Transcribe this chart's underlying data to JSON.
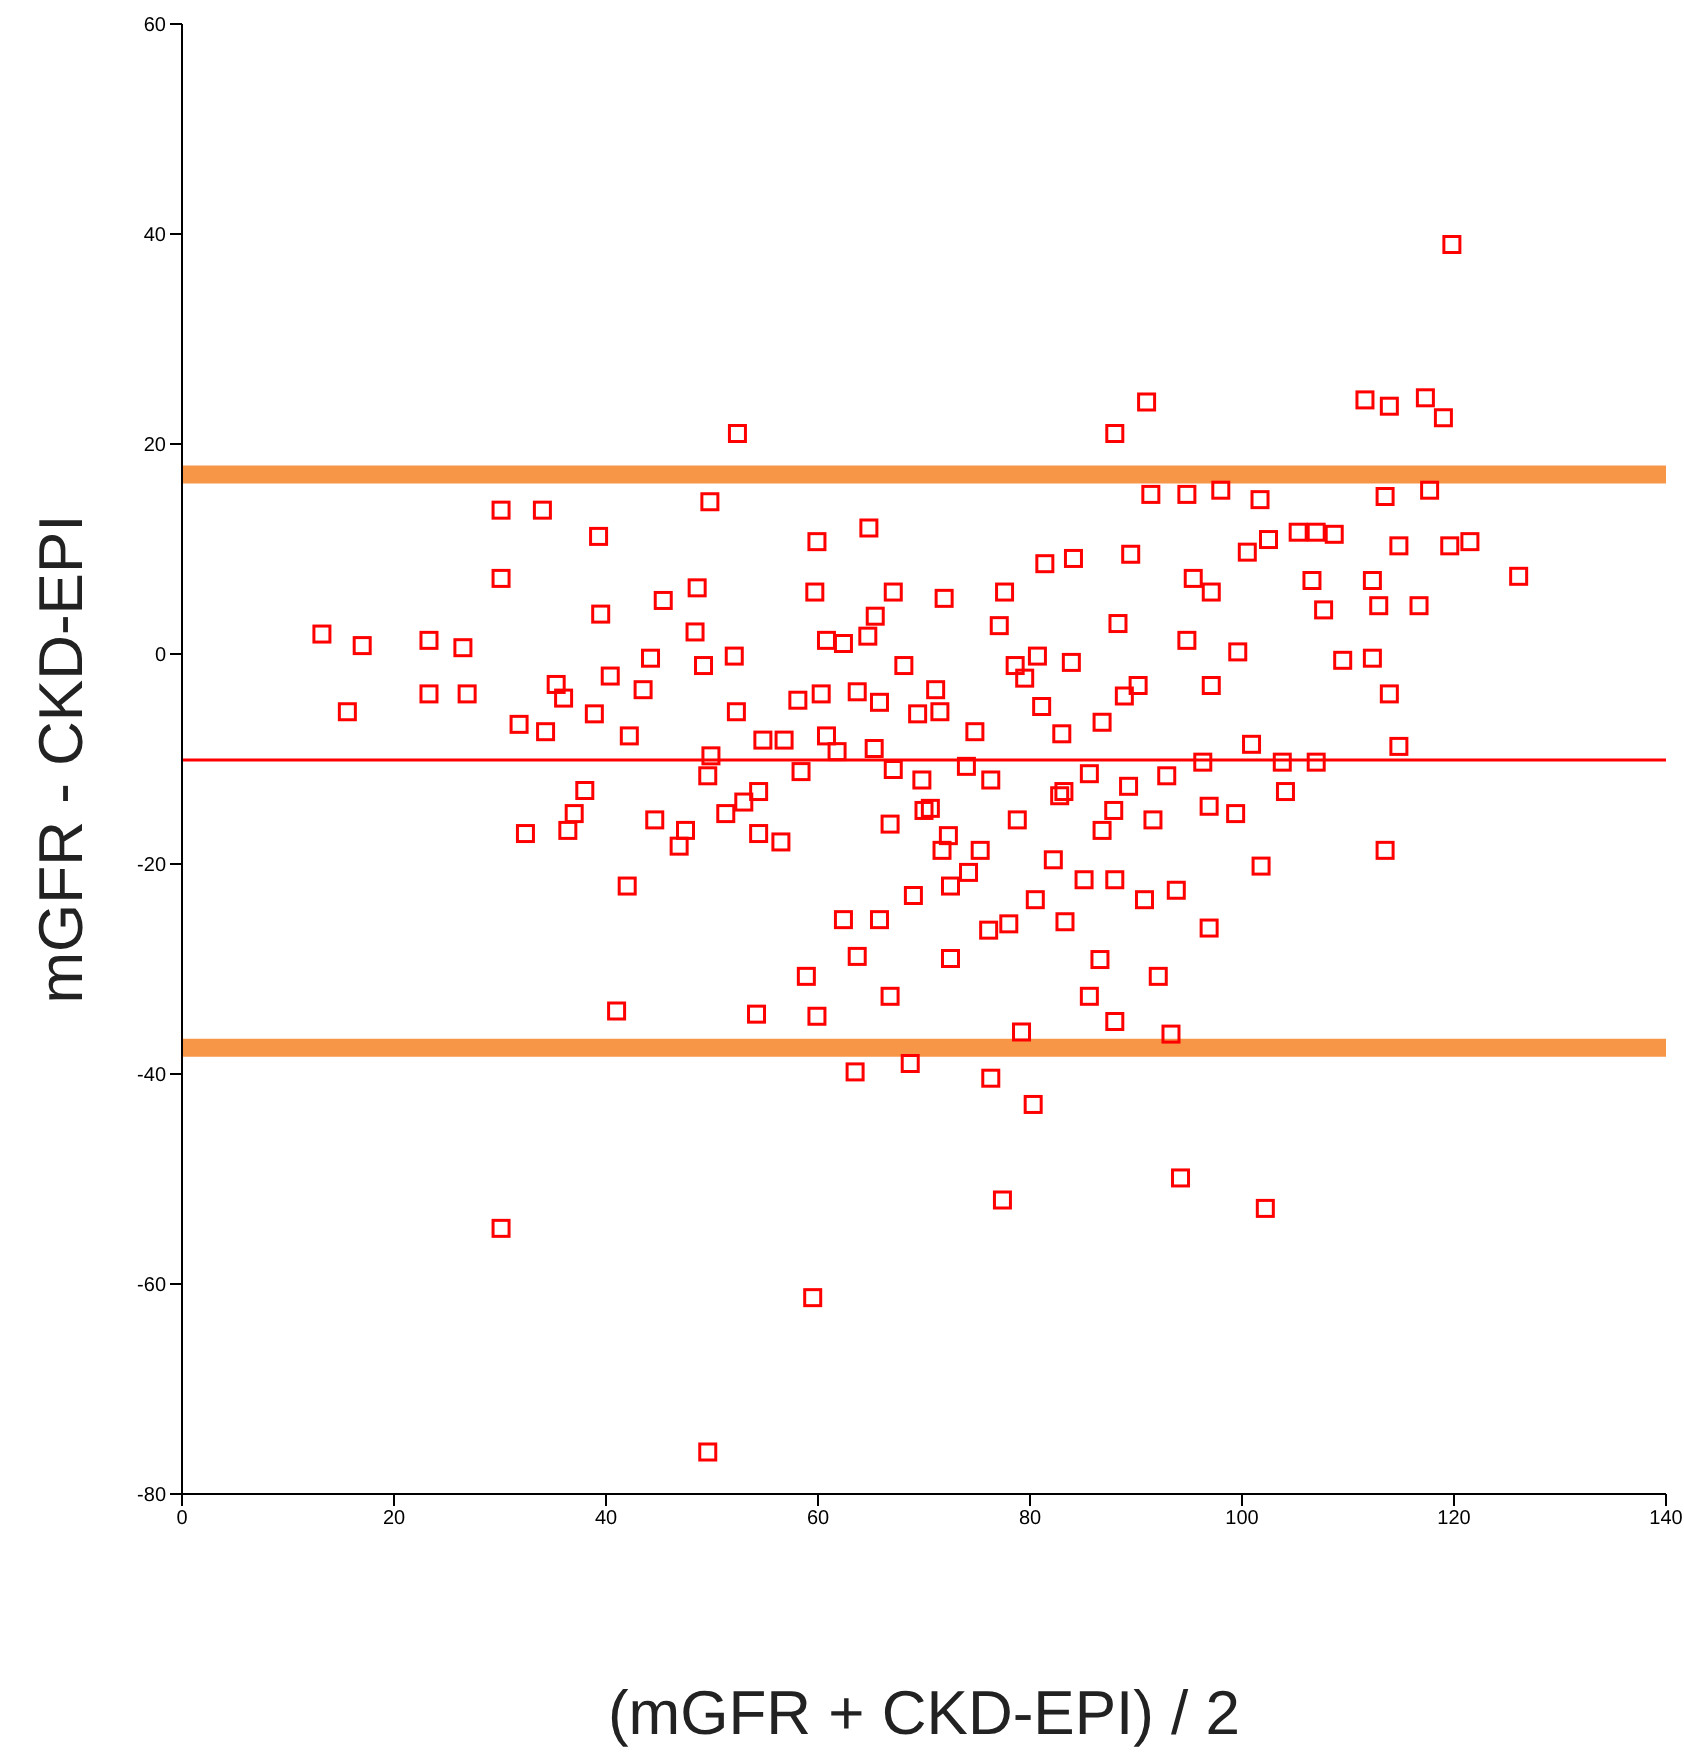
{
  "chart_data": {
    "type": "scatter",
    "xlabel": "(mGFR + CKD-EPI) / 2",
    "ylabel": "mGFR - CKD-EPI",
    "xlim": [
      0,
      140
    ],
    "xticks": [
      0,
      20,
      40,
      60,
      80,
      100,
      120,
      140
    ],
    "ylim": [
      -80,
      60
    ],
    "yticks": [
      -80,
      -60,
      -40,
      -20,
      0,
      20,
      40,
      60
    ],
    "marker": "square",
    "ref_lines": [
      {
        "axis": "y",
        "value": -10.1,
        "color": "#ff0000"
      },
      {
        "axis": "y",
        "value": 17.1,
        "color": "#f79646"
      },
      {
        "axis": "y",
        "value": -37.5,
        "color": "#f79646"
      }
    ],
    "series": [
      {
        "color": "#ff0000",
        "x": [
          119.8,
          119,
          117.3,
          111.6,
          113.9,
          91,
          88,
          52.4,
          126.1,
          121.5,
          30.1,
          59.5,
          49.6,
          77.4,
          94.2,
          102.2,
          80.3,
          76.3,
          63.5,
          68.7,
          93.3,
          79.2,
          41,
          54.2,
          59.9,
          88,
          85.6,
          66.8,
          92.1,
          58.9,
          72.5,
          86.6,
          13.2,
          17,
          15.6,
          23.3,
          23.3,
          26.5,
          26.9,
          30.1,
          30.1,
          34,
          31.8,
          32.4,
          34.3,
          36.4,
          39.5,
          39.3,
          42.2,
          42,
          45.4,
          44.2,
          48.6,
          48.4,
          49.2,
          49.8,
          52.1,
          52.3,
          44.6,
          46.9,
          49.6,
          51.3,
          54.4,
          56.5,
          54.4,
          58.4,
          59.9,
          59.7,
          60.8,
          62.4,
          64.8,
          65.4,
          67.1,
          63.7,
          65.3,
          61.8,
          65.8,
          60.8,
          66.8,
          69.4,
          71.5,
          71.9,
          72.3,
          70,
          62.4,
          63.7,
          65.8,
          69,
          71.7,
          72.5,
          74.2,
          75.3,
          77.6,
          77.1,
          78.6,
          79.5,
          80.7,
          81.4,
          84.1,
          83.9,
          81.1,
          83,
          86.8,
          88.3,
          88.9,
          90.2,
          89.5,
          91.4,
          94.8,
          95.4,
          97.1,
          94.8,
          97.1,
          99.6,
          100.5,
          101.7,
          102.5,
          105.3,
          107,
          108.7,
          106.6,
          107.7,
          112.3,
          112.9,
          116.7,
          109.5,
          112.3,
          113.9,
          117.7,
          113.5,
          114.8,
          119.6,
          114.8,
          113.5,
          100.9,
          101.8,
          99.4,
          96.9,
          93.8,
          90.8,
          88,
          85.1,
          82.2,
          80.5,
          83.3,
          78,
          76.1,
          78.8,
          76.3,
          74,
          69.8,
          67.1,
          83.2,
          85.6,
          89.3,
          92.9,
          96.3,
          103.8,
          107,
          104.1,
          96.9,
          91.6,
          87.9,
          86.8,
          82.8,
          98,
          56.8,
          58.1,
          60.3,
          49.9,
          54.8,
          53,
          47.5,
          38,
          37,
          38.9,
          36,
          35.3,
          40.4,
          43.5,
          70.6,
          74.8,
          71.1,
          68.1,
          64.7
        ],
        "values": [
          39,
          22.5,
          24.4,
          24.2,
          23.6,
          24,
          21,
          21,
          7.4,
          10.7,
          -54.7,
          -61.3,
          -76,
          -52,
          -49.9,
          -52.8,
          -42.9,
          -40.4,
          -39.8,
          -39,
          -36.2,
          -36,
          -34,
          -34.3,
          -34.5,
          -35,
          -32.6,
          -32.6,
          -30.7,
          -30.7,
          -29,
          -29.1,
          1.9,
          0.8,
          -5.5,
          1.3,
          -3.8,
          0.6,
          -3.8,
          7.2,
          13.7,
          13.7,
          -6.7,
          -17.1,
          -7.4,
          -16.8,
          3.8,
          11.2,
          -7.8,
          -22.1,
          5.1,
          -0.4,
          6.3,
          2.1,
          -1.1,
          14.5,
          -0.2,
          -5.5,
          -15.8,
          -18.3,
          -11.6,
          -15.2,
          -17.1,
          -17.9,
          -13.1,
          -11.2,
          10.7,
          5.9,
          1.3,
          1,
          12,
          3.6,
          5.9,
          -3.6,
          -9,
          -9.3,
          -4.6,
          -7.8,
          -16.2,
          -5.7,
          -5.5,
          5.3,
          -17.3,
          -14.9,
          -25.3,
          -28.8,
          -25.3,
          -23,
          -18.7,
          -22.1,
          -20.8,
          -18.7,
          5.9,
          2.7,
          -1.1,
          -2.3,
          -0.2,
          8.6,
          9.1,
          -0.8,
          -5,
          -7.6,
          -6.5,
          2.9,
          -4,
          -3,
          9.5,
          15.2,
          15.2,
          7.2,
          5.9,
          1.3,
          -3,
          0.2,
          9.7,
          14.7,
          10.9,
          11.6,
          11.6,
          11.4,
          7,
          4.2,
          7,
          4.6,
          4.6,
          -0.6,
          -0.4,
          -3.8,
          15.6,
          15,
          10.3,
          10.3,
          -8.8,
          -18.7,
          -8.6,
          -20.2,
          -15.2,
          -26.1,
          -22.5,
          -23.4,
          -21.5,
          -21.5,
          -19.6,
          -23.4,
          -25.5,
          -25.7,
          -26.3,
          -15.8,
          -12,
          -10.7,
          -12,
          -11,
          -13.1,
          -11.4,
          -12.6,
          -11.6,
          -10.3,
          -10.3,
          -10.3,
          -13.1,
          -14.5,
          -15.8,
          -14.9,
          -16.8,
          -13.5,
          15.6,
          -8.2,
          -4.4,
          -3.8,
          -9.7,
          -8.2,
          -14.1,
          -16.8,
          -13,
          -15.2,
          -5.7,
          -4.2,
          -2.9,
          -2.1,
          -3.4,
          -14.7,
          -7.4,
          -3.4,
          -1.1,
          1.7
        ]
      }
    ]
  }
}
